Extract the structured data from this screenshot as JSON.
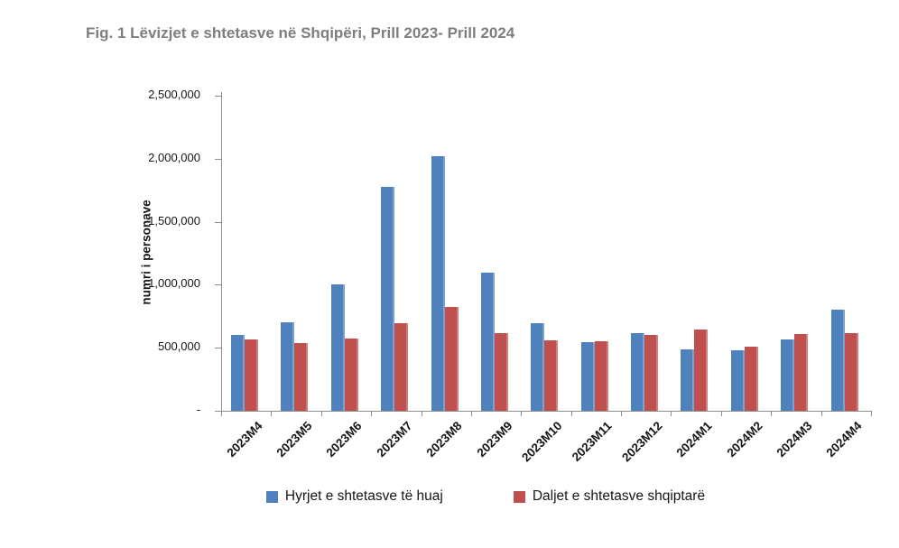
{
  "title": "Fig. 1 Lëvizjet e shtetasve në Shqipëri, Prill 2023- Prill 2024",
  "chart_data": {
    "type": "bar",
    "title": "Fig. 1 Lëvizjet e shtetasve në Shqipëri, Prill 2023- Prill 2024",
    "ylabel": "numri i personave",
    "xlabel": "",
    "ylim": [
      0,
      2500000
    ],
    "ytick_interval": 500000,
    "ytick_labels": [
      "-",
      "500,000",
      "1,000,000",
      "1,500,000",
      "2,000,000",
      "2,500,000"
    ],
    "grid": false,
    "legend_position": "bottom",
    "categories": [
      "2023M4",
      "2023M5",
      "2023M6",
      "2023M7",
      "2023M8",
      "2023M9",
      "2023M10",
      "2023M11",
      "2023M12",
      "2024M1",
      "2024M2",
      "2024M3",
      "2024M4"
    ],
    "series": [
      {
        "name": "Hyrjet e shtetasve të huaj",
        "color": "#4F81BD",
        "values": [
          603000,
          705000,
          1005000,
          1779000,
          2018000,
          1099000,
          695000,
          545000,
          619000,
          490000,
          477000,
          565000,
          799000
        ]
      },
      {
        "name": "Daljet e shtetasve shqiptarë",
        "color": "#C0504D",
        "values": [
          563000,
          535000,
          576000,
          693000,
          826000,
          616000,
          556000,
          554000,
          600000,
          648000,
          508000,
          606000,
          614000
        ]
      }
    ]
  }
}
